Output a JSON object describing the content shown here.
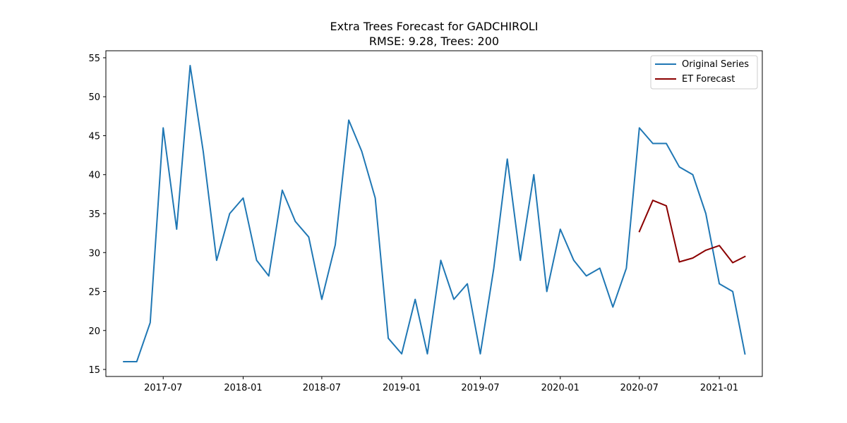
{
  "chart_data": {
    "type": "line",
    "title": "Extra Trees Forecast for GADCHIROLI",
    "subtitle": "RMSE: 9.28, Trees: 200",
    "xlabel": "",
    "ylabel": "",
    "xlim": [
      "2017-02-19",
      "2021-04-10"
    ],
    "ylim": [
      14.1,
      55.9
    ],
    "x_ticks": [
      "2017-07-01",
      "2018-01-01",
      "2018-07-01",
      "2019-01-01",
      "2019-07-01",
      "2020-01-01",
      "2020-07-01",
      "2021-01-01"
    ],
    "x_tick_labels": [
      "2017-07",
      "2018-01",
      "2018-07",
      "2019-01",
      "2019-07",
      "2020-01",
      "2020-07",
      "2021-01"
    ],
    "y_ticks": [
      15,
      20,
      25,
      30,
      35,
      40,
      45,
      50,
      55
    ],
    "grid": false,
    "legend_position": "top-right",
    "series": [
      {
        "name": "Original Series",
        "color": "#1f77b4",
        "x": [
          "2017-04-01",
          "2017-05-01",
          "2017-06-01",
          "2017-07-01",
          "2017-08-01",
          "2017-09-01",
          "2017-10-01",
          "2017-11-01",
          "2017-12-01",
          "2018-01-01",
          "2018-02-01",
          "2018-03-01",
          "2018-04-01",
          "2018-05-01",
          "2018-06-01",
          "2018-07-01",
          "2018-08-01",
          "2018-09-01",
          "2018-10-01",
          "2018-11-01",
          "2018-12-01",
          "2019-01-01",
          "2019-02-01",
          "2019-03-01",
          "2019-04-01",
          "2019-05-01",
          "2019-06-01",
          "2019-07-01",
          "2019-08-01",
          "2019-09-01",
          "2019-10-01",
          "2019-11-01",
          "2019-12-01",
          "2020-01-01",
          "2020-02-01",
          "2020-03-01",
          "2020-04-01",
          "2020-05-01",
          "2020-06-01",
          "2020-07-01",
          "2020-08-01",
          "2020-09-01",
          "2020-10-01",
          "2020-11-01",
          "2020-12-01",
          "2021-01-01",
          "2021-02-01",
          "2021-03-01"
        ],
        "values": [
          16,
          16,
          21,
          46,
          33,
          54,
          43,
          29,
          35,
          37,
          29,
          27,
          38,
          34,
          32,
          24,
          31,
          47,
          43,
          37,
          19,
          17,
          24,
          17,
          29,
          24,
          26,
          17,
          28,
          42,
          29,
          40,
          25,
          33,
          29,
          27,
          28,
          23,
          28,
          46,
          44,
          44,
          41,
          40,
          35,
          26,
          25,
          17
        ]
      },
      {
        "name": "ET Forecast",
        "color": "#8b0000",
        "x": [
          "2020-07-01",
          "2020-08-01",
          "2020-09-01",
          "2020-10-01",
          "2020-11-01",
          "2020-12-01",
          "2021-01-01",
          "2021-02-01",
          "2021-03-01"
        ],
        "values": [
          32.7,
          36.7,
          36.0,
          28.8,
          29.3,
          30.3,
          30.9,
          28.7,
          29.5
        ]
      }
    ]
  }
}
